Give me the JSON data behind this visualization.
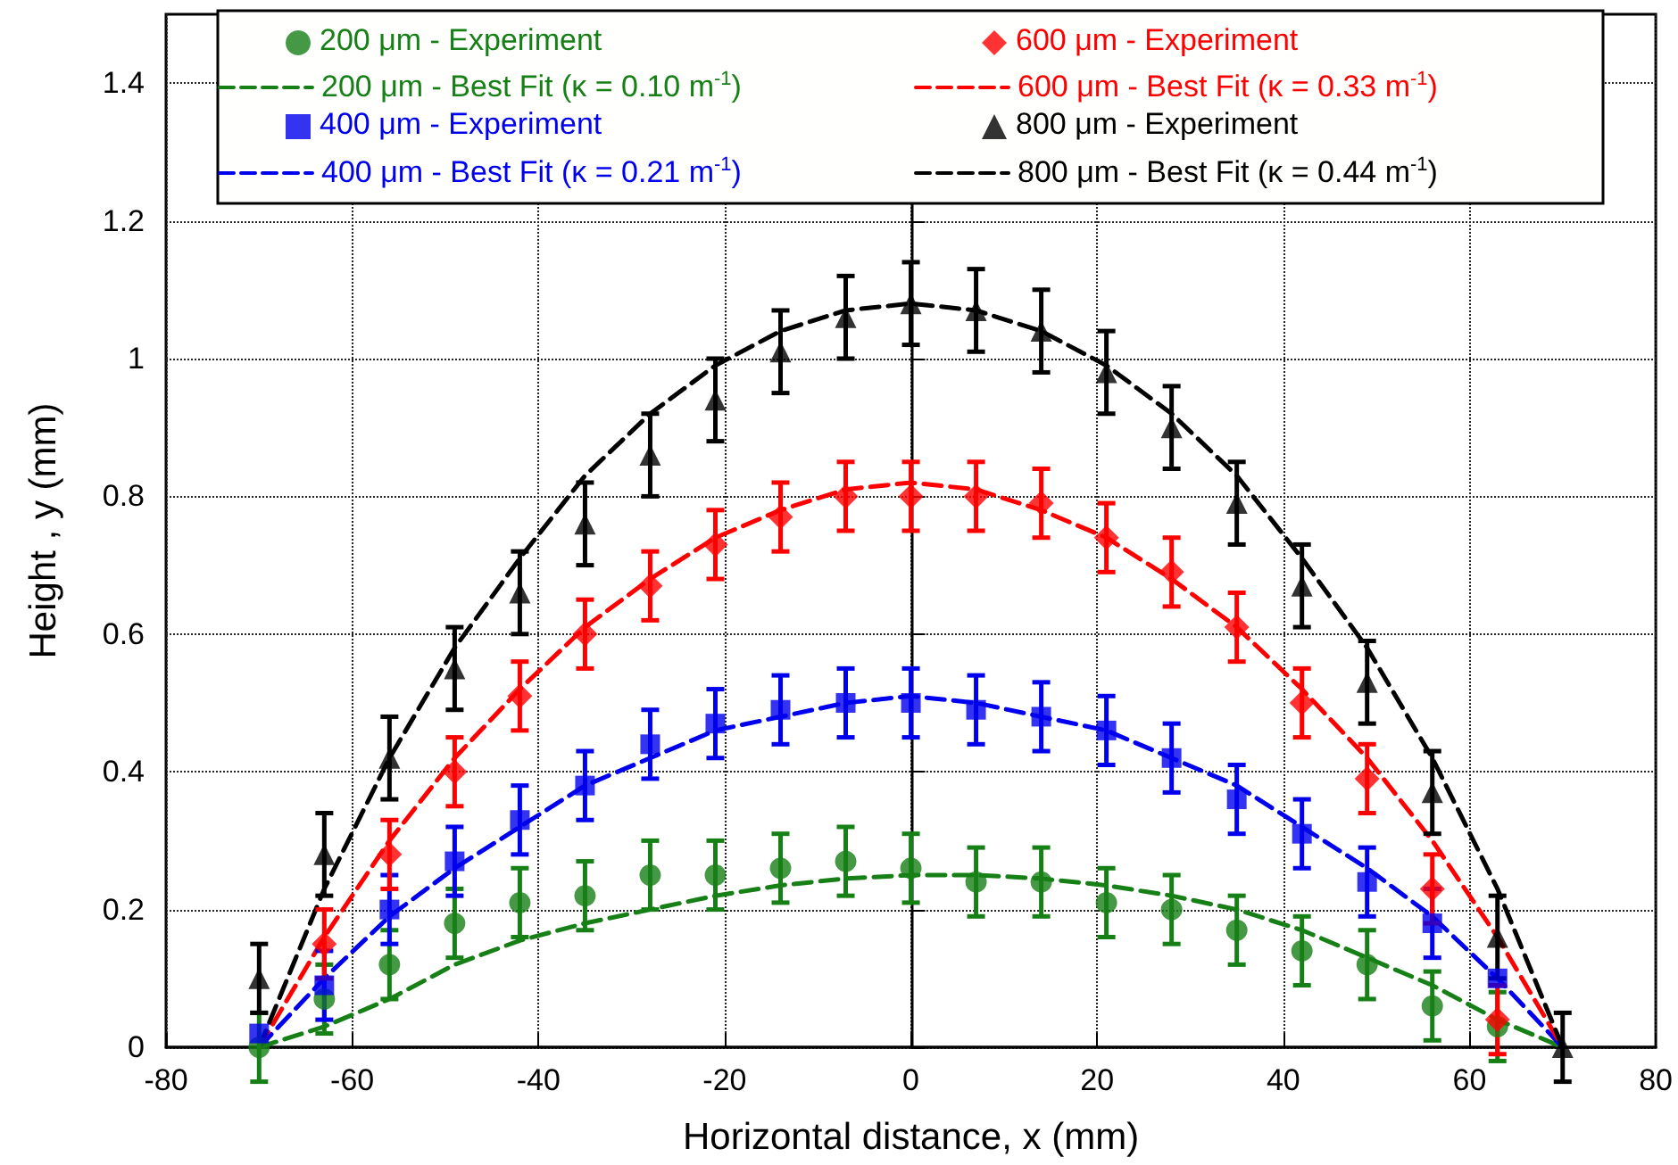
{
  "chart_data": {
    "type": "scatter",
    "xlabel": "Horizontal distance, x (mm)",
    "ylabel": "Height , y (mm)",
    "x": [
      -70,
      -63,
      -56,
      -49,
      -42,
      -35,
      -28,
      -21,
      -14,
      -7,
      0,
      7,
      14,
      21,
      28,
      35,
      42,
      49,
      56,
      63,
      70
    ],
    "xlim": [
      -80,
      80
    ],
    "xticks": [
      -80,
      -60,
      -40,
      -20,
      0,
      20,
      40,
      60,
      80
    ],
    "ylim": [
      0,
      1.5
    ],
    "yticks": [
      0,
      0.2,
      0.4,
      0.6,
      0.8,
      1,
      1.2,
      1.4
    ],
    "grid": true,
    "legend": "top",
    "series": [
      {
        "name": "200 μm - Experiment",
        "marker": "circle",
        "color": "#168016",
        "values": [
          0.0,
          0.07,
          0.12,
          0.18,
          0.21,
          0.22,
          0.25,
          0.25,
          0.26,
          0.27,
          0.26,
          0.24,
          0.24,
          0.21,
          0.2,
          0.17,
          0.14,
          0.12,
          0.06,
          0.03,
          null
        ],
        "errors": [
          0.05,
          0.05,
          0.05,
          0.05,
          0.05,
          0.05,
          0.05,
          0.05,
          0.05,
          0.05,
          0.05,
          0.05,
          0.05,
          0.05,
          0.05,
          0.05,
          0.05,
          0.05,
          0.05,
          0.05,
          null
        ]
      },
      {
        "name": "200 μm - Best Fit (κ = 0.10 m$^{-1}$)",
        "type": "line",
        "marker": "none",
        "line_style": "dashed",
        "color": "#168016",
        "values": [
          0.0,
          0.03,
          0.07,
          0.12,
          0.155,
          0.18,
          0.2,
          0.22,
          0.235,
          0.245,
          0.25,
          0.25,
          0.245,
          0.235,
          0.22,
          0.2,
          0.17,
          0.13,
          0.09,
          0.04,
          0.0
        ]
      },
      {
        "name": "400 μm - Experiment",
        "marker": "square",
        "color": "#0000ee",
        "values": [
          0.02,
          0.09,
          0.2,
          0.27,
          0.33,
          0.38,
          0.44,
          0.47,
          0.49,
          0.5,
          0.5,
          0.49,
          0.48,
          0.46,
          0.42,
          0.36,
          0.31,
          0.24,
          0.18,
          0.1,
          null
        ],
        "errors": [
          null,
          0.05,
          0.05,
          0.05,
          0.05,
          0.05,
          0.05,
          0.05,
          0.05,
          0.05,
          0.05,
          0.05,
          0.05,
          0.05,
          0.05,
          0.05,
          0.05,
          0.05,
          0.05,
          null,
          null
        ]
      },
      {
        "name": "400 μm - Best Fit (κ = 0.21 m$^{-1}$)",
        "type": "line",
        "marker": "none",
        "line_style": "dashed",
        "color": "#0000ee",
        "values": [
          0.0,
          0.1,
          0.19,
          0.26,
          0.32,
          0.38,
          0.42,
          0.46,
          0.48,
          0.5,
          0.51,
          0.5,
          0.48,
          0.46,
          0.42,
          0.38,
          0.32,
          0.26,
          0.19,
          0.1,
          0.0
        ]
      },
      {
        "name": "600 μm - Experiment",
        "marker": "diamond",
        "color": "#ff0000",
        "values": [
          null,
          0.15,
          0.28,
          0.4,
          0.51,
          0.6,
          0.67,
          0.73,
          0.77,
          0.8,
          0.8,
          0.8,
          0.79,
          0.74,
          0.69,
          0.61,
          0.5,
          0.39,
          0.23,
          0.04,
          null
        ],
        "errors": [
          null,
          0.05,
          0.05,
          0.05,
          0.05,
          0.05,
          0.05,
          0.05,
          0.05,
          0.05,
          0.05,
          0.05,
          0.05,
          0.05,
          0.05,
          0.05,
          0.05,
          0.05,
          0.05,
          0.05,
          null
        ]
      },
      {
        "name": "600 μm - Best Fit (κ = 0.33 m$^{-1}$)",
        "type": "line",
        "marker": "none",
        "line_style": "dashed",
        "color": "#ff0000",
        "values": [
          0.0,
          0.16,
          0.3,
          0.42,
          0.52,
          0.61,
          0.68,
          0.74,
          0.78,
          0.81,
          0.82,
          0.81,
          0.78,
          0.74,
          0.68,
          0.61,
          0.52,
          0.42,
          0.3,
          0.16,
          0.0
        ]
      },
      {
        "name": "800 μm - Experiment",
        "marker": "triangle",
        "color": "#000000",
        "values": [
          0.1,
          0.28,
          0.42,
          0.55,
          0.66,
          0.76,
          0.86,
          0.94,
          1.01,
          1.06,
          1.08,
          1.07,
          1.04,
          0.98,
          0.9,
          0.79,
          0.67,
          0.53,
          0.37,
          0.16,
          0.0
        ],
        "errors": [
          0.05,
          0.06,
          0.06,
          0.06,
          0.06,
          0.06,
          0.06,
          0.06,
          0.06,
          0.06,
          0.06,
          0.06,
          0.06,
          0.06,
          0.06,
          0.06,
          0.06,
          0.06,
          0.06,
          0.06,
          0.05
        ]
      },
      {
        "name": "800 μm - Best Fit (κ = 0.44 m$^{-1}$)",
        "type": "line",
        "marker": "none",
        "line_style": "dashed",
        "color": "#000000",
        "values": [
          0.0,
          0.23,
          0.42,
          0.58,
          0.71,
          0.83,
          0.92,
          0.99,
          1.04,
          1.07,
          1.08,
          1.07,
          1.04,
          0.99,
          0.92,
          0.83,
          0.71,
          0.58,
          0.42,
          0.23,
          0.0
        ]
      }
    ]
  }
}
